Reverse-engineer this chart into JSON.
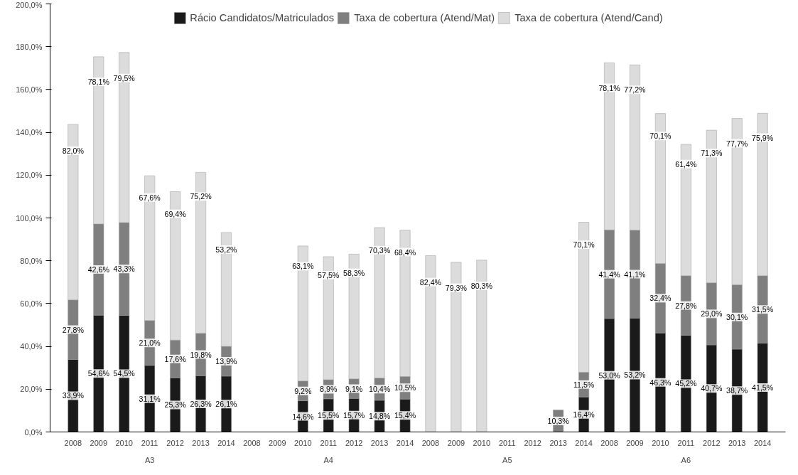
{
  "chart_data": {
    "type": "bar",
    "stacked": true,
    "legend": "top",
    "grid": false,
    "categories": [
      "2008",
      "2009",
      "2010",
      "2011",
      "2012",
      "2013",
      "2014",
      "2008",
      "2009",
      "2010",
      "2011",
      "2012",
      "2013",
      "2014",
      "2008",
      "2009",
      "2010",
      "2011",
      "2012",
      "2013",
      "2014",
      "2008",
      "2009",
      "2010",
      "2011",
      "2012",
      "2013",
      "2014"
    ],
    "annotations": [
      "A3",
      "A4",
      "A5",
      "A6"
    ],
    "ylim": [
      0,
      200
    ],
    "yticks": [
      {
        "value": 0,
        "label": "0,0%"
      },
      {
        "value": 20,
        "label": "20,0%"
      },
      {
        "value": 40,
        "label": "40,0%"
      },
      {
        "value": 60,
        "label": "60,0%"
      },
      {
        "value": 80,
        "label": "80,0%"
      },
      {
        "value": 100,
        "label": "100,0%"
      },
      {
        "value": 120,
        "label": "120,0%"
      },
      {
        "value": 140,
        "label": "140,0%"
      },
      {
        "value": 160,
        "label": "160,0%"
      },
      {
        "value": 180,
        "label": "180,0%"
      },
      {
        "value": 200,
        "label": "200,0%"
      }
    ],
    "series": [
      {
        "name": "Rácio Candidatos/Matriculados",
        "color": "#1a1a1a",
        "values": [
          33.9,
          54.6,
          54.5,
          31.1,
          25.3,
          26.3,
          26.1,
          null,
          null,
          14.6,
          15.5,
          15.7,
          14.8,
          15.4,
          null,
          null,
          null,
          null,
          null,
          null,
          16.4,
          53.0,
          53.2,
          46.3,
          45.2,
          40.7,
          38.7,
          41.5
        ],
        "value_labels": [
          "33,9%",
          "54,6%",
          "54,5%",
          "31,1%",
          "25,3%",
          "26,3%",
          "26,1%",
          null,
          null,
          "14,6%",
          "15,5%",
          "15,7%",
          "14,8%",
          "15,4%",
          null,
          null,
          null,
          null,
          null,
          null,
          "16,4%",
          "53,0%",
          "53,2%",
          "46,3%",
          "45,2%",
          "40,7%",
          "38,7%",
          "41,5%"
        ]
      },
      {
        "name": "Taxa de cobertura (Atend/Mat)",
        "color": "#7f7f7f",
        "values": [
          27.8,
          42.6,
          43.3,
          21.0,
          17.6,
          19.8,
          13.9,
          null,
          null,
          9.2,
          8.9,
          9.1,
          10.4,
          10.5,
          null,
          null,
          null,
          null,
          null,
          10.3,
          11.5,
          41.4,
          41.1,
          32.4,
          27.8,
          29.0,
          30.1,
          31.5
        ],
        "value_labels": [
          "27,8%",
          "42,6%",
          "43,3%",
          "21,0%",
          "17,6%",
          "19,8%",
          "13,9%",
          null,
          null,
          "9,2%",
          "8,9%",
          "9,1%",
          "10,4%",
          "10,5%",
          null,
          null,
          null,
          null,
          null,
          "10,3%",
          "11,5%",
          "41,4%",
          "41,1%",
          "32,4%",
          "27,8%",
          "29,0%",
          "30,1%",
          "31,5%"
        ]
      },
      {
        "name": "Taxa de cobertura (Atend/Cand)",
        "color": "#dcdcdc",
        "values": [
          82.0,
          78.1,
          79.5,
          67.6,
          69.4,
          75.2,
          53.2,
          null,
          null,
          63.1,
          57.5,
          58.3,
          70.3,
          68.4,
          82.4,
          79.3,
          80.3,
          null,
          null,
          null,
          70.1,
          78.1,
          77.2,
          70.1,
          61.4,
          71.3,
          77.7,
          75.9
        ],
        "value_labels": [
          "82,0%",
          "78,1%",
          "79,5%",
          "67,6%",
          "69,4%",
          "75,2%",
          "53,2%",
          null,
          null,
          "63,1%",
          "57,5%",
          "58,3%",
          "70,3%",
          "68,4%",
          "82,4%",
          "79,3%",
          "80,3%",
          null,
          null,
          null,
          "70,1%",
          "78,1%",
          "77,2%",
          "70,1%",
          "61,4%",
          "71,3%",
          "77,7%",
          "75,9%"
        ]
      }
    ]
  }
}
